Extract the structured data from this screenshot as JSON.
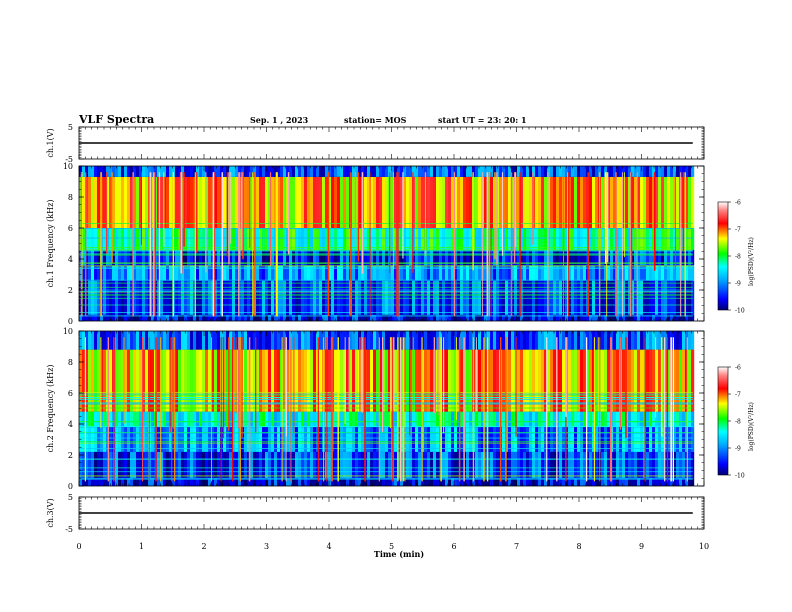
{
  "header": {
    "title": "VLF Spectra",
    "date": "Sep. 1 , 2023",
    "station": "station= MOS",
    "start": "start  UT =   23: 20: 1"
  },
  "chart_data": [
    {
      "type": "line",
      "ylabel": "ch.1(V)",
      "ylim": [
        -5,
        5
      ],
      "yticks": [
        "5",
        "-5"
      ],
      "series": [
        {
          "x": [
            0,
            9.82
          ],
          "values": [
            0,
            0
          ]
        }
      ]
    },
    {
      "type": "heatmap",
      "ylabel": "ch.1  Frequency (kHz)",
      "ylim": [
        0,
        10
      ],
      "yticks": [
        "0",
        "2",
        "4",
        "6",
        "8",
        "10"
      ],
      "xlim": [
        0,
        10
      ],
      "data_xlim": [
        0,
        9.82
      ],
      "colorbar": {
        "label": "log(PSD)(V²/Hz)",
        "range": [
          -10,
          -6
        ],
        "ticks": [
          "-10",
          "-9",
          "-8",
          "-7",
          "-6"
        ]
      },
      "bands_khz": [
        {
          "from": 0,
          "to": 0.4,
          "level": -9.6
        },
        {
          "from": 0.4,
          "to": 2.6,
          "level": -9.3
        },
        {
          "from": 2.6,
          "to": 3.6,
          "level": -9.0
        },
        {
          "from": 3.6,
          "to": 4.6,
          "level": -9.5
        },
        {
          "from": 4.6,
          "to": 6.0,
          "level": -8.3
        },
        {
          "from": 6.0,
          "to": 9.3,
          "level": -7.3
        },
        {
          "from": 9.3,
          "to": 10,
          "level": -9.3
        }
      ]
    },
    {
      "type": "heatmap",
      "ylabel": "ch.2  Frequency (kHz)",
      "ylim": [
        0,
        10
      ],
      "yticks": [
        "0",
        "2",
        "4",
        "6",
        "8",
        "10"
      ],
      "xlim": [
        0,
        10
      ],
      "data_xlim": [
        0,
        9.82
      ],
      "colorbar": {
        "label": "log(PSD)(V²/Hz)",
        "range": [
          -10,
          -6
        ],
        "ticks": [
          "-10",
          "-9",
          "-8",
          "-7",
          "-6"
        ]
      },
      "bands_khz": [
        {
          "from": 0,
          "to": 0.5,
          "level": -9.6
        },
        {
          "from": 0.5,
          "to": 2.2,
          "level": -9.4
        },
        {
          "from": 2.2,
          "to": 3.8,
          "level": -9.0
        },
        {
          "from": 3.8,
          "to": 4.8,
          "level": -8.5
        },
        {
          "from": 4.8,
          "to": 8.8,
          "level": -7.4
        },
        {
          "from": 8.8,
          "to": 10,
          "level": -9.2
        }
      ]
    },
    {
      "type": "line",
      "ylabel": "ch.3(V)",
      "ylim": [
        -5,
        5
      ],
      "yticks": [
        "5",
        "-5"
      ],
      "xlabel": "Time  (min)",
      "xlim": [
        0,
        10
      ],
      "xticks": [
        "0",
        "1",
        "2",
        "3",
        "4",
        "5",
        "6",
        "7",
        "8",
        "9",
        "10"
      ],
      "series": [
        {
          "x": [
            0,
            9.82
          ],
          "values": [
            0,
            0
          ]
        }
      ]
    }
  ],
  "colors": {
    "colormap": [
      "#000070",
      "#0000ff",
      "#00aaff",
      "#00ffff",
      "#00ff00",
      "#ffff00",
      "#ff0000",
      "#ff8080",
      "#ffffff"
    ],
    "axis": "#000000"
  }
}
